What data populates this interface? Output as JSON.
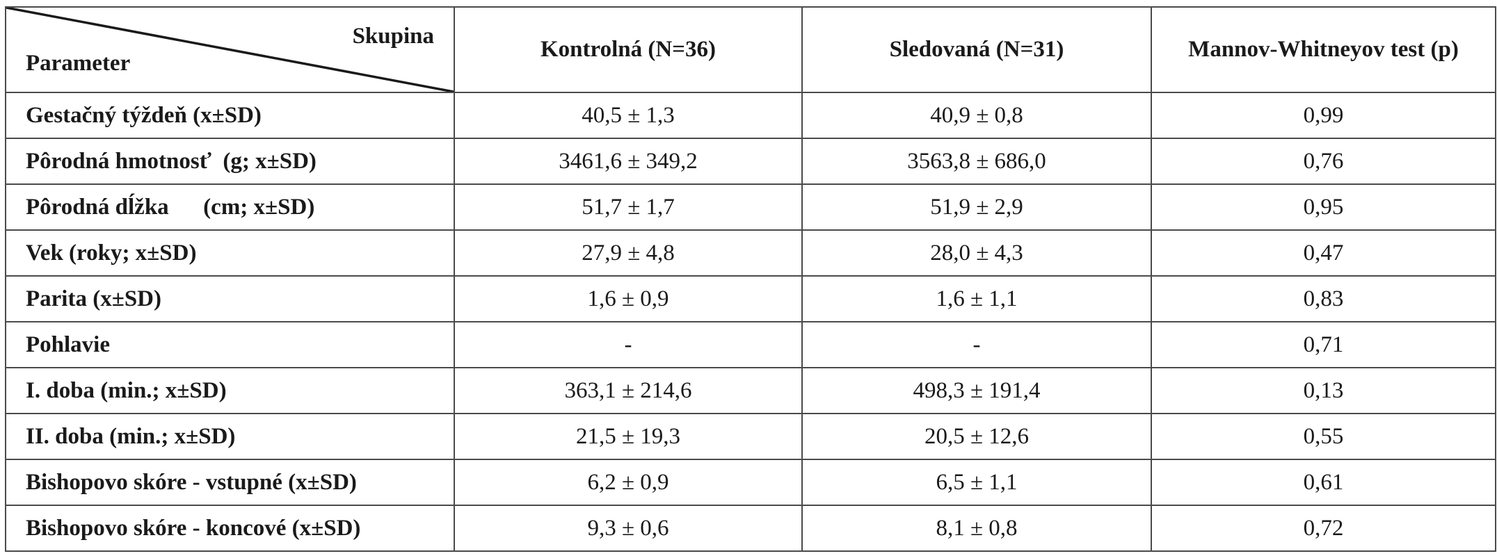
{
  "header": {
    "corner_top": "Skupina",
    "corner_bottom": "Parameter",
    "columns": [
      "Kontrolná (N=36)",
      "Sledovaná (N=31)",
      "Mannov-Whitneyov test (p)"
    ]
  },
  "rows": [
    {
      "param": "Gestačný týždeň (x±SD)",
      "kontrolna": "40,5 ± 1,3",
      "sledovana": "40,9 ± 0,8",
      "p": "0,99"
    },
    {
      "param": "Pôrodná hmotnosť  (g; x±SD)",
      "kontrolna": "3461,6 ± 349,2",
      "sledovana": "3563,8 ± 686,0",
      "p": "0,76"
    },
    {
      "param": "Pôrodná dĺžka      (cm; x±SD)",
      "kontrolna": "51,7 ± 1,7",
      "sledovana": "51,9 ± 2,9",
      "p": "0,95"
    },
    {
      "param": "Vek (roky; x±SD)",
      "kontrolna": "27,9 ± 4,8",
      "sledovana": "28,0 ± 4,3",
      "p": "0,47"
    },
    {
      "param": "Parita (x±SD)",
      "kontrolna": "1,6 ± 0,9",
      "sledovana": "1,6 ± 1,1",
      "p": "0,83"
    },
    {
      "param": "Pohlavie",
      "kontrolna": "-",
      "sledovana": "-",
      "p": "0,71"
    },
    {
      "param": "I. doba (min.; x±SD)",
      "kontrolna": "363,1 ± 214,6",
      "sledovana": "498,3 ± 191,4",
      "p": "0,13"
    },
    {
      "param": "II. doba (min.; x±SD)",
      "kontrolna": "21,5 ± 19,3",
      "sledovana": "20,5 ± 12,6",
      "p": "0,55"
    },
    {
      "param": "Bishopovo skóre - vstupné (x±SD)",
      "kontrolna": "6,2 ± 0,9",
      "sledovana": "6,5 ± 1,1",
      "p": "0,61"
    },
    {
      "param": "Bishopovo skóre - koncové (x±SD)",
      "kontrolna": "9,3 ± 0,6",
      "sledovana": "8,1 ± 0,8",
      "p": "0,72"
    }
  ]
}
